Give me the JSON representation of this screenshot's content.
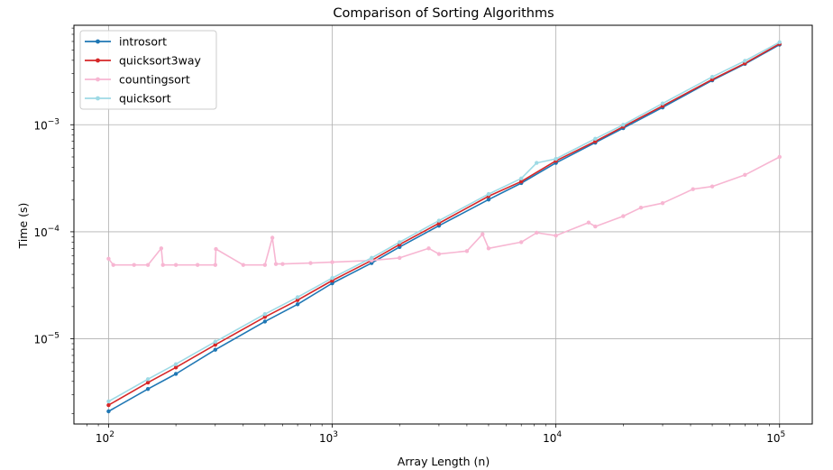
{
  "chart_data": {
    "type": "line",
    "title": "Comparison of Sorting Algorithms",
    "xlabel": "Array Length (n)",
    "ylabel": "Time (s)",
    "xscale": "log",
    "yscale": "log",
    "xlim": [
      70,
      140000
    ],
    "ylim": [
      1.6e-06,
      0.0085
    ],
    "grid": true,
    "legend_position": "upper-left",
    "x_major_ticks": [
      {
        "value": 100,
        "mant": "10",
        "exp": "2"
      },
      {
        "value": 1000,
        "mant": "10",
        "exp": "3"
      },
      {
        "value": 10000,
        "mant": "10",
        "exp": "4"
      },
      {
        "value": 100000,
        "mant": "10",
        "exp": "5"
      }
    ],
    "y_major_ticks": [
      {
        "value": 1e-05,
        "mant": "10",
        "exp": "−5"
      },
      {
        "value": 0.0001,
        "mant": "10",
        "exp": "−4"
      },
      {
        "value": 0.001,
        "mant": "10",
        "exp": "−3"
      }
    ],
    "series": [
      {
        "name": "introsort",
        "color": "#1f77b4",
        "x": [
          100,
          150,
          200,
          300,
          500,
          700,
          1000,
          1500,
          2000,
          3000,
          5000,
          7000,
          10000,
          15000,
          20000,
          30000,
          50000,
          70000,
          100000
        ],
        "y": [
          2.1e-06,
          3.4e-06,
          4.7e-06,
          7.9e-06,
          1.45e-05,
          2.1e-05,
          3.3e-05,
          5.1e-05,
          7.2e-05,
          0.000114,
          0.0002,
          0.000285,
          0.00044,
          0.00068,
          0.00093,
          0.00145,
          0.0026,
          0.0037,
          0.0056
        ]
      },
      {
        "name": "quicksort3way",
        "color": "#d62728",
        "x": [
          100,
          150,
          200,
          300,
          500,
          700,
          1000,
          1500,
          2000,
          3000,
          5000,
          7000,
          10000,
          15000,
          20000,
          30000,
          50000,
          70000,
          100000
        ],
        "y": [
          2.4e-06,
          3.9e-06,
          5.4e-06,
          8.8e-06,
          1.6e-05,
          2.3e-05,
          3.5e-05,
          5.4e-05,
          7.6e-05,
          0.00012,
          0.000215,
          0.000295,
          0.00046,
          0.0007,
          0.00096,
          0.0015,
          0.00265,
          0.00375,
          0.0057
        ]
      },
      {
        "name": "countingsort",
        "color": "#f7b6d2",
        "x": [
          100,
          105,
          130,
          150,
          172,
          175,
          200,
          250,
          300,
          302,
          400,
          500,
          540,
          560,
          600,
          800,
          1000,
          1500,
          2000,
          2700,
          3000,
          4000,
          4700,
          5000,
          7000,
          8200,
          10000,
          14000,
          15000,
          20000,
          24000,
          30000,
          41000,
          50000,
          70000,
          100000
        ],
        "y": [
          5.6e-05,
          4.9e-05,
          4.9e-05,
          4.9e-05,
          7e-05,
          4.9e-05,
          4.9e-05,
          4.9e-05,
          4.9e-05,
          6.9e-05,
          4.9e-05,
          4.9e-05,
          8.8e-05,
          5e-05,
          5e-05,
          5.1e-05,
          5.2e-05,
          5.4e-05,
          5.7e-05,
          7e-05,
          6.2e-05,
          6.6e-05,
          9.5e-05,
          7e-05,
          8e-05,
          9.8e-05,
          9.2e-05,
          0.000122,
          0.000112,
          0.00014,
          0.000168,
          0.000185,
          0.00025,
          0.000265,
          0.00034,
          0.0005
        ]
      },
      {
        "name": "quicksort",
        "color": "#9edae5",
        "x": [
          100,
          150,
          200,
          300,
          500,
          700,
          1000,
          1500,
          2000,
          3000,
          5000,
          7000,
          8200,
          10000,
          15000,
          20000,
          30000,
          50000,
          70000,
          100000
        ],
        "y": [
          2.6e-06,
          4.2e-06,
          5.8e-06,
          9.4e-06,
          1.7e-05,
          2.45e-05,
          3.7e-05,
          5.7e-05,
          8e-05,
          0.000127,
          0.000225,
          0.000315,
          0.00044,
          0.00048,
          0.00074,
          0.001,
          0.00158,
          0.0028,
          0.00395,
          0.0059
        ]
      }
    ]
  }
}
